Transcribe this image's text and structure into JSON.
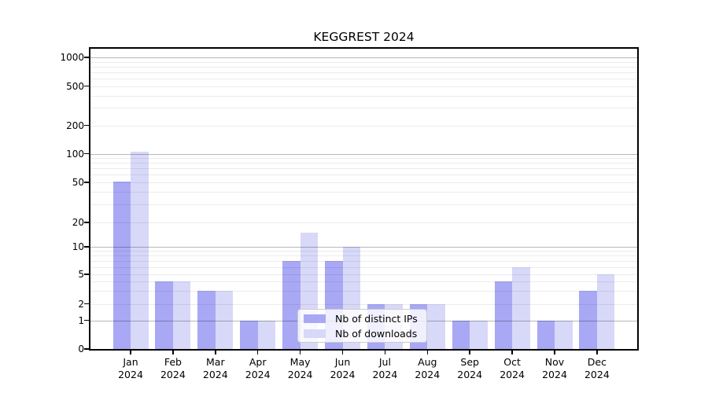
{
  "title": "KEGGREST 2024",
  "chart_data": {
    "type": "bar",
    "title": "KEGGREST 2024",
    "categories": [
      {
        "month": "Jan",
        "year": "2024"
      },
      {
        "month": "Feb",
        "year": "2024"
      },
      {
        "month": "Mar",
        "year": "2024"
      },
      {
        "month": "Apr",
        "year": "2024"
      },
      {
        "month": "May",
        "year": "2024"
      },
      {
        "month": "Jun",
        "year": "2024"
      },
      {
        "month": "Jul",
        "year": "2024"
      },
      {
        "month": "Aug",
        "year": "2024"
      },
      {
        "month": "Sep",
        "year": "2024"
      },
      {
        "month": "Oct",
        "year": "2024"
      },
      {
        "month": "Nov",
        "year": "2024"
      },
      {
        "month": "Dec",
        "year": "2024"
      }
    ],
    "series": [
      {
        "name": "Nb of distinct IPs",
        "color": "#a8a8f5",
        "values": [
          51,
          4,
          3,
          1,
          7,
          7,
          2,
          2,
          1,
          4,
          1,
          3
        ]
      },
      {
        "name": "Nb of downloads",
        "color": "#d8d8f8",
        "values": [
          105,
          4,
          3,
          1,
          15,
          10,
          2,
          2,
          1,
          6,
          1,
          5
        ]
      }
    ],
    "y_ticks": [
      0,
      1,
      2,
      5,
      10,
      20,
      50,
      100,
      200,
      500,
      1000
    ],
    "y_axis": {
      "scale": "log-like",
      "min": 0,
      "max": 1000
    },
    "x_axis": {
      "label": ""
    },
    "grid": true,
    "legend_position": "lower center",
    "colors": {
      "bar_distinct_ips": "#a8a8f5",
      "bar_downloads": "#d8d8f8",
      "major_grid": "#b8b8b8",
      "minor_grid": "#ebebeb",
      "spine": "#000000",
      "background": "#ffffff"
    }
  }
}
